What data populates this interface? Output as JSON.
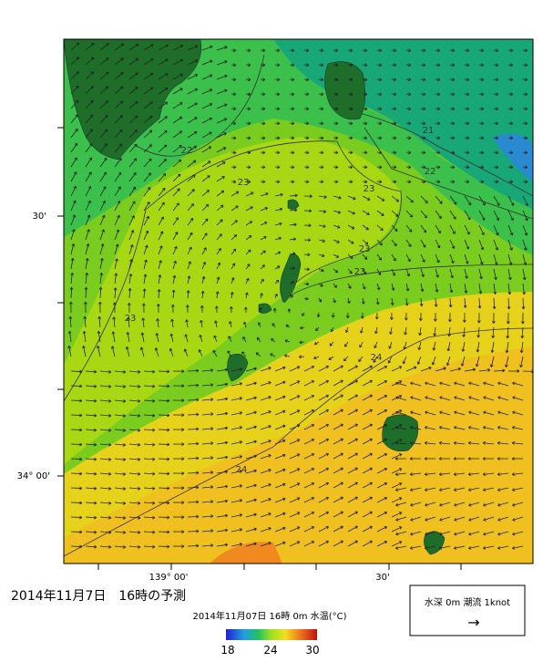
{
  "map": {
    "axis_labels": {
      "left": [
        "30'",
        "34° 00'"
      ],
      "bottom": [
        "139° 00'",
        "30'"
      ]
    },
    "contour_labels": [
      "22",
      "21",
      "22",
      "23",
      "23",
      "23",
      "23",
      "23",
      "24",
      "24"
    ],
    "caption": "2014年11月7日　16時の予測",
    "colorbar": {
      "title": "2014年11月07日 16時 0m 水温(°C)",
      "labels": [
        "18",
        "24",
        "30"
      ]
    },
    "legend": {
      "text": "水深 0m 潮流 1knot",
      "arrow": "→"
    }
  }
}
